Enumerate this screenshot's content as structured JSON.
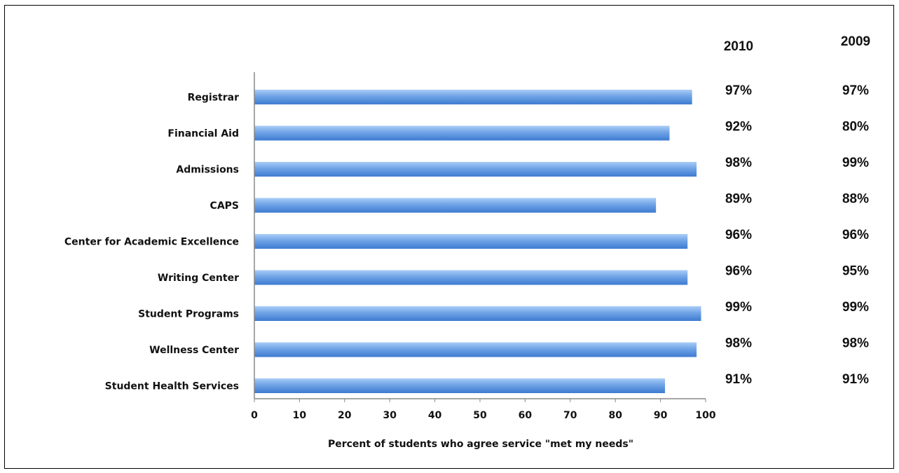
{
  "chart_data": {
    "type": "bar",
    "orientation": "horizontal",
    "categories": [
      "Registrar",
      "Financial Aid",
      "Admissions",
      "CAPS",
      "Center for Academic Excellence",
      "Writing Center",
      "Student Programs",
      "Wellness Center",
      "Student Health Services"
    ],
    "series": [
      {
        "name": "2010",
        "values": [
          97,
          92,
          98,
          89,
          96,
          96,
          99,
          98,
          91
        ],
        "color": "#6fa3e6"
      }
    ],
    "xlabel": "Percent of students who agree service \"met my needs\"",
    "ylabel": "",
    "xlim": [
      0,
      100
    ],
    "xticks": [
      "0",
      "10",
      "20",
      "30",
      "40",
      "50",
      "60",
      "70",
      "80",
      "90",
      "100"
    ],
    "grid": false,
    "legend": "none",
    "table": {
      "headers": [
        "2010",
        "2009"
      ],
      "columns": [
        [
          "97%",
          "92%",
          "98%",
          "89%",
          "96%",
          "96%",
          "99%",
          "98%",
          "91%"
        ],
        [
          "97%",
          "80%",
          "99%",
          "88%",
          "96%",
          "95%",
          "99%",
          "98%",
          "91%"
        ]
      ]
    }
  }
}
